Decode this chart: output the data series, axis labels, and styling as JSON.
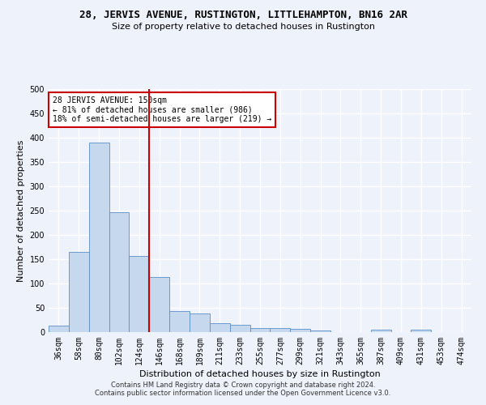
{
  "title": "28, JERVIS AVENUE, RUSTINGTON, LITTLEHAMPTON, BN16 2AR",
  "subtitle": "Size of property relative to detached houses in Rustington",
  "xlabel": "Distribution of detached houses by size in Rustington",
  "ylabel": "Number of detached properties",
  "categories": [
    "36sqm",
    "58sqm",
    "80sqm",
    "102sqm",
    "124sqm",
    "146sqm",
    "168sqm",
    "189sqm",
    "211sqm",
    "233sqm",
    "255sqm",
    "277sqm",
    "299sqm",
    "321sqm",
    "343sqm",
    "365sqm",
    "387sqm",
    "409sqm",
    "431sqm",
    "453sqm",
    "474sqm"
  ],
  "values": [
    13,
    165,
    390,
    247,
    157,
    113,
    43,
    38,
    18,
    15,
    9,
    9,
    6,
    4,
    0,
    0,
    5,
    0,
    5,
    0,
    0
  ],
  "bar_color": "#c5d8ee",
  "bar_edgecolor": "#5b8ec7",
  "annotation_text": "28 JERVIS AVENUE: 150sqm\n← 81% of detached houses are smaller (986)\n18% of semi-detached houses are larger (219) →",
  "annotation_box_color": "#ffffff",
  "annotation_box_edgecolor": "#cc0000",
  "ylim": [
    0,
    500
  ],
  "yticks": [
    0,
    50,
    100,
    150,
    200,
    250,
    300,
    350,
    400,
    450,
    500
  ],
  "vline_color": "#cc0000",
  "vline_x": 4.5,
  "footer": "Contains HM Land Registry data © Crown copyright and database right 2024.\nContains public sector information licensed under the Open Government Licence v3.0.",
  "bg_color": "#eef2fb",
  "grid_color": "#ffffff",
  "title_fontsize": 9,
  "subtitle_fontsize": 8,
  "ylabel_fontsize": 8,
  "xlabel_fontsize": 8,
  "tick_fontsize": 7,
  "annotation_fontsize": 7
}
